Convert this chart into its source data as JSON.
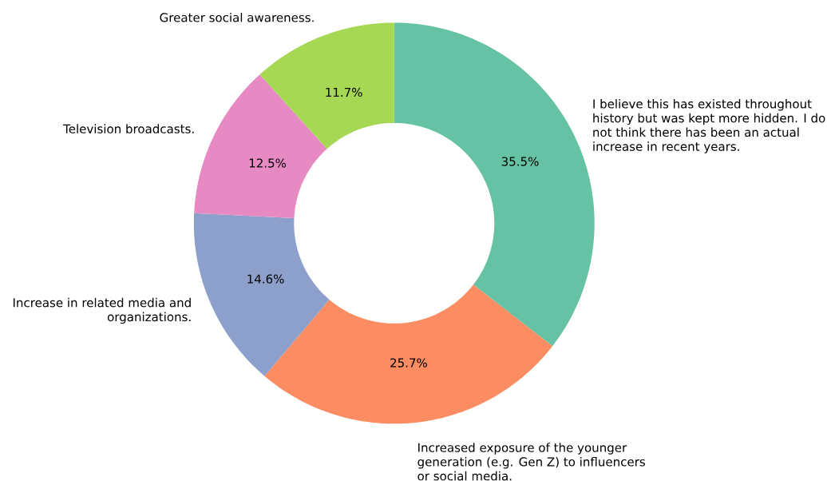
{
  "chart_data": {
    "type": "donut",
    "categories": [
      "I believe this has existed throughout history but was kept more hidden. I do not think there has been an actual increase in recent years.",
      "Increased exposure of the younger generation (e.g. Gen Z) to influencers or social media.",
      "Increase in related media and organizations.",
      "Television broadcasts.",
      "Greater social awareness."
    ],
    "values": [
      35.5,
      25.7,
      14.6,
      12.5,
      11.7
    ],
    "value_labels": [
      "35.5%",
      "25.7%",
      "14.6%",
      "12.5%",
      "11.7%"
    ],
    "colors": [
      "#66c2a5",
      "#fc8d62",
      "#8da0cb",
      "#e78ac3",
      "#a6d854"
    ]
  }
}
